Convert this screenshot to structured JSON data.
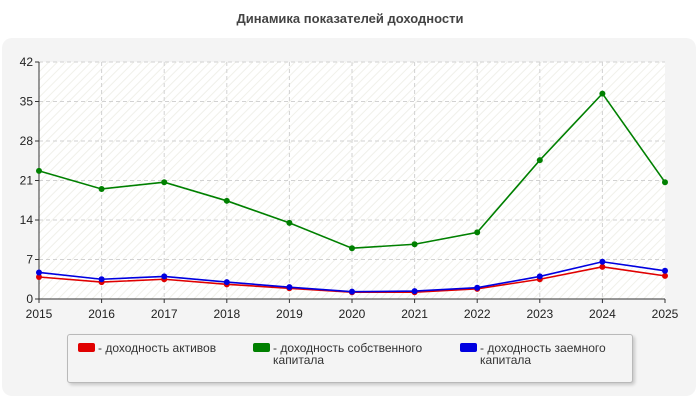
{
  "chart_data": {
    "type": "line",
    "title": "Динамика показателей доходности",
    "x": [
      2015,
      2016,
      2017,
      2018,
      2019,
      2020,
      2021,
      2022,
      2023,
      2024,
      2025
    ],
    "xlim": [
      2015,
      2025
    ],
    "ylim": [
      0,
      42
    ],
    "yticks": [
      0,
      7,
      14,
      21,
      28,
      35,
      42
    ],
    "grid": true,
    "legend_position": "bottom",
    "series": [
      {
        "name": "- доходность активов",
        "color": "#e00000",
        "values": [
          3.9,
          3.0,
          3.5,
          2.6,
          1.9,
          1.2,
          1.2,
          1.8,
          3.5,
          5.7,
          4.1
        ]
      },
      {
        "name": "- доходность собственного капитала",
        "color": "#008000",
        "values": [
          22.7,
          19.5,
          20.7,
          17.4,
          13.5,
          9.0,
          9.7,
          11.8,
          24.6,
          36.4,
          20.7
        ]
      },
      {
        "name": "- доходность заемного капитала",
        "color": "#0000e0",
        "values": [
          4.7,
          3.5,
          4.0,
          3.0,
          2.1,
          1.3,
          1.4,
          2.0,
          4.0,
          6.6,
          5.0
        ]
      }
    ]
  }
}
